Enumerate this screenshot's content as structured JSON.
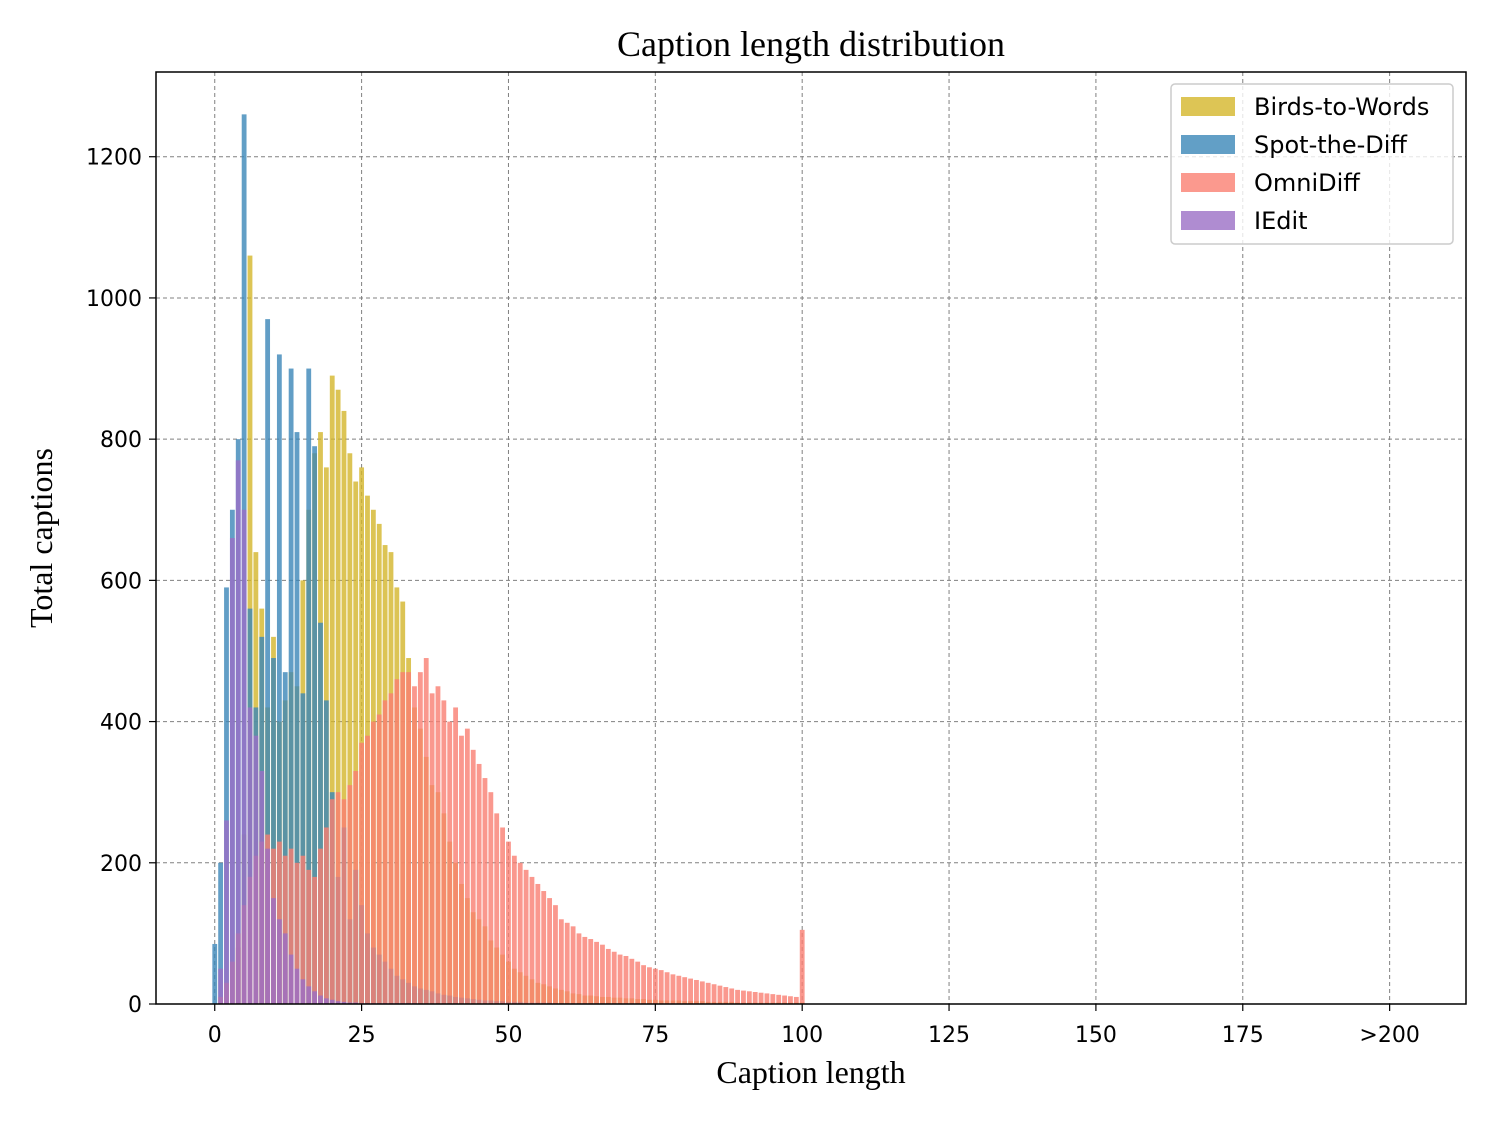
{
  "chart_data": {
    "type": "bar",
    "title": "Caption length distribution",
    "xlabel": "Caption length",
    "ylabel": "Total captions",
    "xlim": [
      -10,
      213
    ],
    "ylim": [
      0,
      1320
    ],
    "xticks": [
      {
        "value": 0,
        "label": "0"
      },
      {
        "value": 25,
        "label": "25"
      },
      {
        "value": 50,
        "label": "50"
      },
      {
        "value": 75,
        "label": "75"
      },
      {
        "value": 100,
        "label": "100"
      },
      {
        "value": 125,
        "label": "125"
      },
      {
        "value": 150,
        "label": "150"
      },
      {
        "value": 175,
        "label": "175"
      },
      {
        "value": 200,
        "label": ">200"
      }
    ],
    "yticks": [
      0,
      200,
      400,
      600,
      800,
      1000,
      1200
    ],
    "grid": true,
    "legend_position": "top-right",
    "series": [
      {
        "name": "Birds-to-Words",
        "color": "#d4b62b",
        "x_start": 0,
        "values": [
          0,
          0,
          0,
          0,
          80,
          240,
          1060,
          640,
          560,
          420,
          520,
          400,
          430,
          470,
          450,
          600,
          700,
          780,
          810,
          760,
          890,
          870,
          840,
          780,
          740,
          760,
          720,
          700,
          680,
          650,
          640,
          590,
          570,
          490,
          420,
          390,
          350,
          310,
          300,
          270,
          230,
          200,
          170,
          150,
          130,
          120,
          110,
          90,
          80,
          70,
          60,
          50,
          45,
          40,
          35,
          30,
          28,
          25,
          22,
          20,
          18,
          15,
          14,
          12,
          12,
          11,
          10,
          10,
          9,
          9,
          8,
          8,
          7,
          7,
          6,
          6,
          5,
          5,
          5,
          5,
          4,
          4,
          4,
          4,
          3,
          3,
          3,
          3,
          3,
          2,
          2,
          2,
          2,
          2,
          2,
          2,
          2,
          2,
          2,
          2,
          2
        ]
      },
      {
        "name": "Spot-the-Diff",
        "color": "#3b87b8",
        "x_start": 0,
        "values": [
          85,
          200,
          590,
          700,
          800,
          1260,
          560,
          420,
          520,
          970,
          490,
          920,
          470,
          900,
          810,
          440,
          900,
          790,
          540,
          430,
          300,
          180,
          250,
          120,
          190,
          140,
          100,
          80,
          70,
          60,
          50,
          40,
          35,
          30,
          25,
          22,
          20,
          18,
          15,
          13,
          12,
          10,
          9,
          8,
          7,
          6,
          5,
          5,
          4,
          4,
          3,
          3,
          3,
          2,
          2,
          2,
          2,
          2,
          1,
          1,
          1,
          1,
          1,
          1,
          1,
          1,
          1,
          1,
          1,
          1,
          1
        ]
      },
      {
        "name": "OmniDiff",
        "color": "#fa7f72",
        "x_start": 0,
        "values": [
          0,
          10,
          30,
          60,
          100,
          140,
          180,
          210,
          230,
          240,
          220,
          230,
          210,
          220,
          200,
          210,
          190,
          180,
          220,
          250,
          290,
          300,
          290,
          310,
          330,
          370,
          380,
          400,
          410,
          430,
          440,
          460,
          470,
          470,
          450,
          470,
          490,
          440,
          450,
          430,
          400,
          420,
          380,
          390,
          360,
          340,
          320,
          300,
          270,
          250,
          230,
          210,
          200,
          190,
          180,
          170,
          160,
          150,
          140,
          120,
          115,
          110,
          100,
          95,
          92,
          88,
          84,
          78,
          74,
          70,
          68,
          64,
          60,
          55,
          52,
          50,
          48,
          45,
          42,
          40,
          38,
          36,
          34,
          32,
          30,
          28,
          26,
          24,
          22,
          20,
          19,
          18,
          17,
          16,
          15,
          14,
          13,
          12,
          11,
          10,
          105
        ]
      },
      {
        "name": "IEdit",
        "color": "#9b6fc6",
        "x_start": 0,
        "values": [
          0,
          50,
          260,
          660,
          770,
          700,
          420,
          380,
          330,
          220,
          150,
          120,
          100,
          70,
          50,
          35,
          25,
          18,
          12,
          8,
          6,
          4,
          3,
          2,
          2,
          1,
          1,
          1,
          1,
          1,
          1,
          1,
          1,
          1,
          1
        ]
      }
    ]
  }
}
